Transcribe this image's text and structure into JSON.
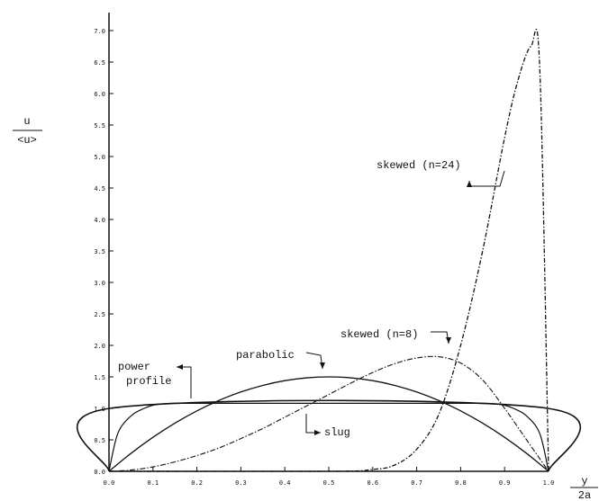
{
  "chart_data": {
    "type": "line",
    "xlabel": {
      "numerator": "y",
      "denominator": "2a"
    },
    "ylabel": {
      "numerator": "u",
      "denominator": "<u>"
    },
    "xlim": [
      0.0,
      1.0
    ],
    "ylim": [
      0.0,
      7.0
    ],
    "x_ticks": [
      "0.0",
      "0.1",
      "0.2",
      "0.3",
      "0.4",
      "0.5",
      "0.6",
      "0.7",
      "0.8",
      "0.9",
      "1.0"
    ],
    "y_ticks": [
      "0.0",
      "0.5",
      "1.0",
      "1.5",
      "2.0",
      "2.5",
      "3.0",
      "3.5",
      "4.0",
      "4.5",
      "5.0",
      "5.5",
      "6.0",
      "6.5",
      "7.0"
    ],
    "grid": false,
    "legend": "none",
    "series": [
      {
        "name": "slug",
        "x": [
          0.0,
          0.002,
          0.998,
          1.0
        ],
        "y": [
          0.0,
          1.0,
          1.0,
          0.0
        ]
      },
      {
        "name": "power profile",
        "x": [
          0.0,
          0.02,
          0.05,
          0.08,
          0.1,
          0.12,
          0.15,
          0.2,
          0.5,
          0.8,
          0.85,
          0.88,
          0.9,
          0.92,
          0.95,
          0.98,
          1.0
        ],
        "y": [
          0.0,
          0.6,
          0.88,
          1.0,
          1.05,
          1.07,
          1.08,
          1.08,
          1.08,
          1.08,
          1.08,
          1.07,
          1.05,
          1.0,
          0.88,
          0.6,
          0.0
        ]
      },
      {
        "name": "parabolic",
        "x": [
          0.0,
          0.05,
          0.1,
          0.15,
          0.2,
          0.25,
          0.3,
          0.35,
          0.4,
          0.45,
          0.5,
          0.55,
          0.6,
          0.65,
          0.7,
          0.75,
          0.8,
          0.85,
          0.9,
          0.95,
          1.0
        ],
        "y": [
          0.0,
          0.285,
          0.54,
          0.765,
          0.96,
          1.125,
          1.26,
          1.365,
          1.44,
          1.485,
          1.5,
          1.485,
          1.44,
          1.365,
          1.26,
          1.125,
          0.96,
          0.765,
          0.54,
          0.285,
          0.0
        ]
      },
      {
        "name": "skewed (n=8)",
        "x": [
          0.0,
          0.05,
          0.1,
          0.15,
          0.2,
          0.25,
          0.3,
          0.35,
          0.4,
          0.45,
          0.5,
          0.55,
          0.6,
          0.65,
          0.7,
          0.75,
          0.8,
          0.85,
          0.9,
          0.95,
          1.0
        ],
        "y": [
          0.0,
          0.02,
          0.07,
          0.15,
          0.25,
          0.37,
          0.52,
          0.68,
          0.86,
          1.04,
          1.22,
          1.4,
          1.57,
          1.71,
          1.8,
          1.82,
          1.72,
          1.45,
          1.0,
          0.5,
          0.0
        ]
      },
      {
        "name": "skewed (n=24)",
        "x": [
          0.0,
          0.5,
          0.6,
          0.65,
          0.7,
          0.75,
          0.8,
          0.85,
          0.9,
          0.93,
          0.96,
          0.98,
          1.0
        ],
        "y": [
          0.0,
          0.0,
          0.03,
          0.1,
          0.35,
          0.9,
          2.0,
          3.5,
          5.3,
          6.2,
          6.75,
          6.4,
          0.0
        ]
      }
    ],
    "annotations": [
      {
        "text": "power",
        "target": "power profile"
      },
      {
        "text": "profile",
        "target": "power profile"
      },
      {
        "text": "parabolic",
        "target": "parabolic"
      },
      {
        "text": "slug",
        "target": "slug"
      },
      {
        "text": "skewed (n=8)",
        "target": "skewed (n=8)"
      },
      {
        "text": "skewed (n=24)",
        "target": "skewed (n=24)"
      }
    ]
  }
}
